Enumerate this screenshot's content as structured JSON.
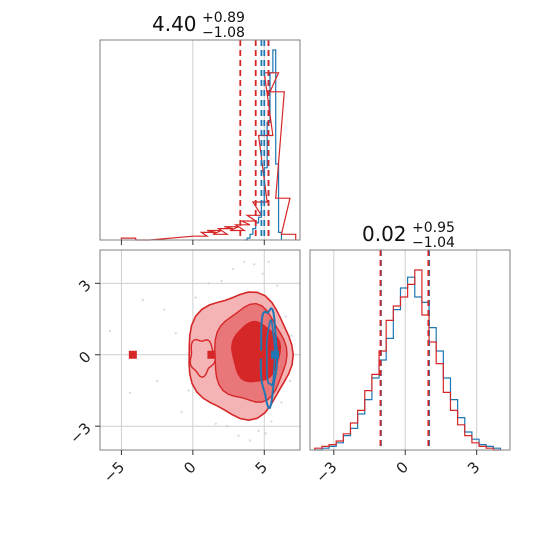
{
  "colors": {
    "red": "#d62728",
    "blue": "#1f77b4",
    "red_fill_light": "#f4b3b4",
    "red_fill_mid": "#e9777a",
    "red_fill_dark": "#d62728",
    "grid": "#cfcfcf",
    "axis": "#808080"
  },
  "chart_data": [
    {
      "type": "line",
      "panel": "marginal-x",
      "title": {
        "value": "4.40",
        "upper": "+0.89",
        "lower": "−1.08"
      },
      "xlim": [
        -6.5,
        7.5
      ],
      "grid": true,
      "gridlines_x": [
        0,
        5
      ],
      "tick_labels_shown": false,
      "series": [
        {
          "color": "blue",
          "bins_x": [
            3.6,
            3.8,
            4.0,
            4.2,
            4.4,
            4.6,
            4.8,
            5.0,
            5.2,
            5.4,
            5.6,
            5.8,
            6.0
          ],
          "counts": [
            0.0,
            0.01,
            0.03,
            0.06,
            0.09,
            0.12,
            0.2,
            0.38,
            0.62,
            0.88,
            1.0,
            0.4,
            0.04
          ]
        },
        {
          "color": "red",
          "bins_x": [
            -5.0,
            -4.0,
            0.0,
            0.6,
            1.0,
            1.4,
            1.8,
            2.2,
            2.6,
            3.0,
            3.4,
            3.8,
            4.2,
            4.6,
            5.0,
            5.4,
            5.8,
            6.2
          ],
          "counts": [
            0.01,
            0.0,
            0.02,
            0.04,
            0.05,
            0.03,
            0.06,
            0.07,
            0.05,
            0.08,
            0.1,
            0.13,
            0.2,
            0.55,
            0.88,
            0.78,
            0.22,
            0.03
          ]
        }
      ],
      "quantile_lines": [
        {
          "color": "blue",
          "values": [
            4.8,
            5.3
          ]
        },
        {
          "color": "red",
          "values": [
            3.32,
            5.29
          ]
        }
      ],
      "median_lines": [
        {
          "color": "blue",
          "value": 5.0
        },
        {
          "color": "red",
          "value": 4.4
        }
      ]
    },
    {
      "type": "scatter",
      "panel": "joint",
      "xlim": [
        -6.5,
        7.5
      ],
      "ylim": [
        -4.0,
        4.4
      ],
      "xticks": [
        -5,
        0,
        5
      ],
      "yticks": [
        -3,
        0,
        3
      ],
      "grid": true,
      "contours": [
        {
          "color": "red",
          "filled": true,
          "level": "outer",
          "center": [
            3.3,
            0.0
          ]
        },
        {
          "color": "red",
          "filled": true,
          "level": "mid",
          "center": [
            4.0,
            0.0
          ]
        },
        {
          "color": "red",
          "filled": true,
          "level": "inner",
          "center": [
            4.4,
            0.1
          ]
        },
        {
          "color": "blue",
          "filled": false,
          "center": [
            5.3,
            0.0
          ]
        }
      ],
      "markers": [
        {
          "color": "red",
          "x": -4.2,
          "y": 0.0
        },
        {
          "color": "red",
          "x": 1.3,
          "y": 0.0
        },
        {
          "color": "red",
          "x": 4.85,
          "y": 0.0
        },
        {
          "color": "blue",
          "x": 5.75,
          "y": 0.0
        }
      ],
      "scatter_points": [
        [
          -5.8,
          1.0
        ],
        [
          -4.4,
          -1.6
        ],
        [
          -3.5,
          2.3
        ],
        [
          -2.5,
          -1.1
        ],
        [
          -1.2,
          0.9
        ],
        [
          -0.8,
          -2.4
        ],
        [
          0.4,
          1.7
        ],
        [
          0.7,
          -0.8
        ],
        [
          1.1,
          3.0
        ],
        [
          1.6,
          -2.9
        ],
        [
          2.0,
          3.1
        ],
        [
          2.4,
          -3.0
        ],
        [
          2.8,
          3.6
        ],
        [
          3.2,
          -3.4
        ],
        [
          3.6,
          3.9
        ],
        [
          4.0,
          -3.6
        ],
        [
          4.3,
          3.8
        ],
        [
          4.6,
          -3.2
        ],
        [
          4.9,
          3.4
        ],
        [
          5.1,
          -3.3
        ],
        [
          5.3,
          3.9
        ],
        [
          5.5,
          -2.8
        ],
        [
          5.9,
          2.9
        ],
        [
          6.2,
          -2.0
        ],
        [
          6.5,
          1.6
        ],
        [
          6.8,
          -1.1
        ],
        [
          6.9,
          0.8
        ],
        [
          0.2,
          2.4
        ],
        [
          -0.3,
          -1.5
        ],
        [
          -2.0,
          1.9
        ]
      ]
    },
    {
      "type": "line",
      "panel": "marginal-y",
      "title": {
        "value": "0.02",
        "upper": "+0.95",
        "lower": "−1.04"
      },
      "xlim": [
        -4.0,
        4.4
      ],
      "xticks": [
        -3,
        0,
        3
      ],
      "grid": true,
      "series": [
        {
          "color": "blue",
          "bins_x": [
            -3.8,
            -3.5,
            -3.2,
            -2.9,
            -2.6,
            -2.3,
            -2.0,
            -1.7,
            -1.4,
            -1.1,
            -0.8,
            -0.5,
            -0.2,
            0.1,
            0.4,
            0.7,
            1.0,
            1.3,
            1.6,
            1.9,
            2.2,
            2.5,
            2.8,
            3.1,
            3.4,
            3.7
          ],
          "counts": [
            0.0,
            0.01,
            0.02,
            0.04,
            0.08,
            0.12,
            0.2,
            0.28,
            0.4,
            0.5,
            0.62,
            0.78,
            0.9,
            0.96,
            0.85,
            0.82,
            0.68,
            0.55,
            0.4,
            0.28,
            0.18,
            0.1,
            0.06,
            0.03,
            0.02,
            0.01
          ]
        },
        {
          "color": "red",
          "bins_x": [
            -3.8,
            -3.5,
            -3.2,
            -2.9,
            -2.6,
            -2.3,
            -2.0,
            -1.7,
            -1.4,
            -1.1,
            -0.8,
            -0.5,
            -0.2,
            0.1,
            0.4,
            0.7,
            1.0,
            1.3,
            1.6,
            1.9,
            2.2,
            2.5,
            2.8,
            3.1,
            3.4,
            3.7
          ],
          "counts": [
            0.01,
            0.02,
            0.03,
            0.05,
            0.09,
            0.15,
            0.22,
            0.33,
            0.42,
            0.55,
            0.72,
            0.8,
            0.85,
            0.92,
            1.0,
            0.75,
            0.6,
            0.48,
            0.32,
            0.22,
            0.14,
            0.08,
            0.04,
            0.02,
            0.01,
            0.0
          ]
        }
      ],
      "quantile_lines": [
        {
          "color": "blue",
          "values": [
            -1.02,
            1.0
          ]
        },
        {
          "color": "red",
          "values": [
            -1.04,
            0.97
          ]
        }
      ]
    }
  ]
}
